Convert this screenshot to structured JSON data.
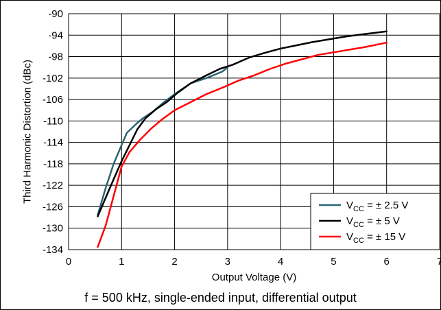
{
  "chart_data": {
    "type": "line",
    "xlabel": "Output Voltage (V)",
    "ylabel": "Third Harmonic Distortion (dBc)",
    "xlim": [
      0,
      7
    ],
    "ylim": [
      -134,
      -90
    ],
    "xticks": [
      0,
      1,
      2,
      3,
      4,
      5,
      6,
      7
    ],
    "yticks": [
      -90,
      -94,
      -98,
      -102,
      -106,
      -110,
      -114,
      -118,
      -122,
      -126,
      -130,
      -134
    ],
    "grid": true,
    "legend_position": "bottom-right",
    "series": [
      {
        "name": "V_CC = ± 2.5 V",
        "legend": {
          "main": "V",
          "sub": "CC",
          "rest": " = ± 2.5 V"
        },
        "color": "#2b6474",
        "x": [
          0.55,
          0.7,
          0.85,
          1.0,
          1.1,
          1.25,
          1.4,
          1.6,
          1.8,
          2.0,
          2.3,
          2.6,
          2.9,
          3.0
        ],
        "y": [
          -127.5,
          -122.5,
          -118.0,
          -114.5,
          -112.2,
          -110.8,
          -109.5,
          -108.2,
          -106.5,
          -105.0,
          -103.0,
          -102.0,
          -100.8,
          -100.0
        ]
      },
      {
        "name": "V_CC = ± 5 V",
        "legend": {
          "main": "V",
          "sub": "CC",
          "rest": " = ± 5 V"
        },
        "color": "#000000",
        "x": [
          0.55,
          0.8,
          1.0,
          1.15,
          1.3,
          1.45,
          1.65,
          1.85,
          2.05,
          2.3,
          2.6,
          2.85,
          3.1,
          3.4,
          3.7,
          4.0,
          4.3,
          4.6,
          4.9,
          5.2,
          5.5,
          5.75,
          6.0
        ],
        "y": [
          -127.8,
          -122.0,
          -117.5,
          -114.5,
          -111.5,
          -109.5,
          -107.8,
          -106.5,
          -104.8,
          -103.0,
          -101.5,
          -100.3,
          -99.5,
          -98.2,
          -97.3,
          -96.5,
          -95.9,
          -95.3,
          -94.8,
          -94.3,
          -93.9,
          -93.6,
          -93.3
        ]
      },
      {
        "name": "V_CC = ± 15 V",
        "legend": {
          "main": "V",
          "sub": "CC",
          "rest": " = ± 15 V"
        },
        "color": "#ff0000",
        "x": [
          0.55,
          0.7,
          0.85,
          1.0,
          1.15,
          1.35,
          1.55,
          1.75,
          2.0,
          2.3,
          2.6,
          2.9,
          3.2,
          3.5,
          3.8,
          4.1,
          4.4,
          4.7,
          5.0,
          5.3,
          5.6,
          5.8,
          6.0
        ],
        "y": [
          -133.5,
          -129.5,
          -124.0,
          -118.5,
          -115.8,
          -113.5,
          -111.5,
          -109.8,
          -108.0,
          -106.5,
          -105.0,
          -103.8,
          -102.5,
          -101.5,
          -100.3,
          -99.3,
          -98.5,
          -97.7,
          -97.2,
          -96.7,
          -96.2,
          -95.8,
          -95.4
        ]
      }
    ]
  },
  "caption": "f = 500 kHz, single-ended input, differential output"
}
